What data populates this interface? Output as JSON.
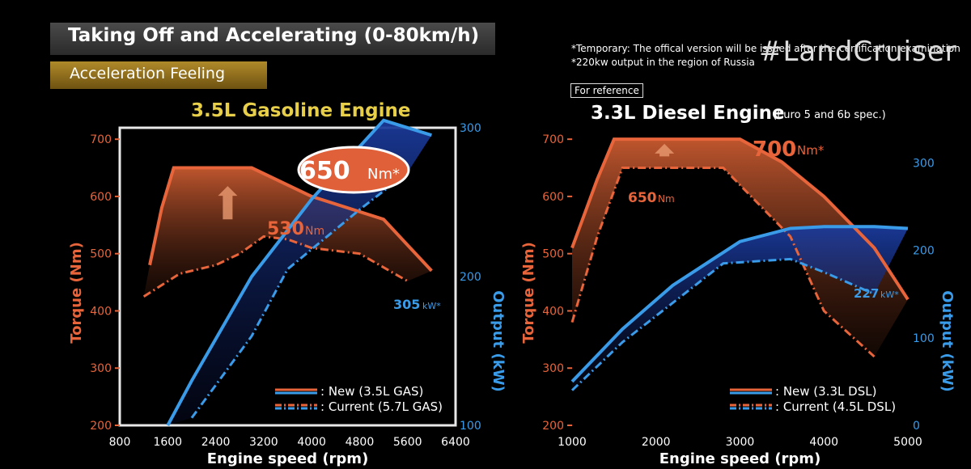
{
  "header": {
    "title": "Taking Off and Accelerating (0-80km/h)",
    "subtitle": "Acceleration Feeling"
  },
  "notes": {
    "line1": "*Temporary: The offical version will be issued after the certification examination",
    "line2": "*220kw output in the region of Russia",
    "hashtag": "#LandCruiser",
    "reference": "For reference"
  },
  "colors": {
    "torque": "#e8643a",
    "output": "#3a9be8",
    "title_gold": "#e7cf4a"
  },
  "chart_data": [
    {
      "type": "area",
      "title": "3.5L Gasoline Engine",
      "xlabel": "Engine speed (rpm)",
      "ylabel_left": "Torque (Nm)",
      "ylabel_right": "Output (kW)",
      "xlim": [
        800,
        6400
      ],
      "ylim_left": [
        200,
        720
      ],
      "ylim_right": [
        100,
        300
      ],
      "x_ticks": [
        "800",
        "1600",
        "2400",
        "3200",
        "4000",
        "4800",
        "5600",
        "6400"
      ],
      "y_ticks_left": [
        "200",
        "300",
        "400",
        "500",
        "600",
        "700"
      ],
      "y_ticks_right": [
        "100",
        "200",
        "300"
      ],
      "series": [
        {
          "name": "New (3.5L GAS)",
          "axis": "torque",
          "style": "solid",
          "x": [
            1300,
            1500,
            1700,
            3000,
            4000,
            5200,
            6000
          ],
          "y": [
            480,
            580,
            650,
            650,
            600,
            560,
            470
          ]
        },
        {
          "name": "Current (5.7L GAS)",
          "axis": "torque",
          "style": "dashdot",
          "x": [
            1200,
            1800,
            2400,
            2800,
            3200,
            3600,
            4000,
            4800,
            5600
          ],
          "y": [
            425,
            465,
            480,
            500,
            530,
            525,
            510,
            500,
            452
          ]
        },
        {
          "name": "New (3.5L GAS)",
          "axis": "output",
          "style": "solid",
          "x": [
            1600,
            2000,
            3000,
            4000,
            5200,
            6000
          ],
          "y": [
            100,
            130,
            200,
            252,
            305,
            295
          ]
        },
        {
          "name": "Current (5.7L GAS)",
          "axis": "output",
          "style": "dashdot",
          "x": [
            2000,
            3000,
            3600,
            4800,
            5600
          ],
          "y": [
            105,
            160,
            205,
            245,
            270
          ]
        }
      ],
      "annotations": {
        "torque_new": "650",
        "torque_new_unit": "Nm*",
        "torque_current": "530",
        "torque_current_unit": "Nm",
        "output_new": "305",
        "output_new_unit": "kW*"
      },
      "legend": {
        "new": ": New (3.5L GAS)",
        "current": ": Current (5.7L GAS)"
      }
    },
    {
      "type": "area",
      "title": "3.3L Diesel Engine",
      "title_note": "(Euro 5 and 6b spec.)",
      "xlabel": "Engine speed (rpm)",
      "ylabel_left": "Torque (Nm)",
      "ylabel_right": "Output (kW)",
      "xlim": [
        1000,
        5000
      ],
      "ylim_left": [
        200,
        720
      ],
      "ylim_right": [
        0,
        340
      ],
      "x_ticks": [
        "1000",
        "2000",
        "3000",
        "4000",
        "5000"
      ],
      "y_ticks_left": [
        "200",
        "300",
        "400",
        "500",
        "600",
        "700"
      ],
      "y_ticks_right": [
        "0",
        "100",
        "200",
        "300"
      ],
      "series": [
        {
          "name": "New (3.3L DSL)",
          "axis": "torque",
          "style": "solid",
          "x": [
            1000,
            1300,
            1500,
            3000,
            3500,
            4000,
            4600,
            5000
          ],
          "y": [
            510,
            630,
            700,
            700,
            660,
            600,
            510,
            420
          ]
        },
        {
          "name": "Current (4.5L DSL)",
          "axis": "torque",
          "style": "dashdot",
          "x": [
            1000,
            1300,
            1600,
            2800,
            3600,
            4000,
            4600
          ],
          "y": [
            380,
            530,
            650,
            650,
            530,
            400,
            320
          ]
        },
        {
          "name": "New (3.3L DSL)",
          "axis": "output",
          "style": "solid",
          "x": [
            1000,
            1600,
            2200,
            3000,
            3600,
            4000,
            4600,
            5000
          ],
          "y": [
            50,
            110,
            160,
            210,
            225,
            227,
            227,
            225
          ]
        },
        {
          "name": "Current (4.5L DSL)",
          "axis": "output",
          "style": "dashdot",
          "x": [
            1000,
            1600,
            2200,
            2800,
            3600,
            4000,
            4600
          ],
          "y": [
            40,
            95,
            140,
            185,
            190,
            175,
            150
          ]
        }
      ],
      "annotations": {
        "torque_new": "700",
        "torque_new_unit": "Nm*",
        "torque_current": "650",
        "torque_current_unit": "Nm",
        "output_new": "227",
        "output_new_unit": "kW*"
      },
      "legend": {
        "new": ": New (3.3L DSL)",
        "current": ": Current (4.5L DSL)"
      }
    }
  ]
}
